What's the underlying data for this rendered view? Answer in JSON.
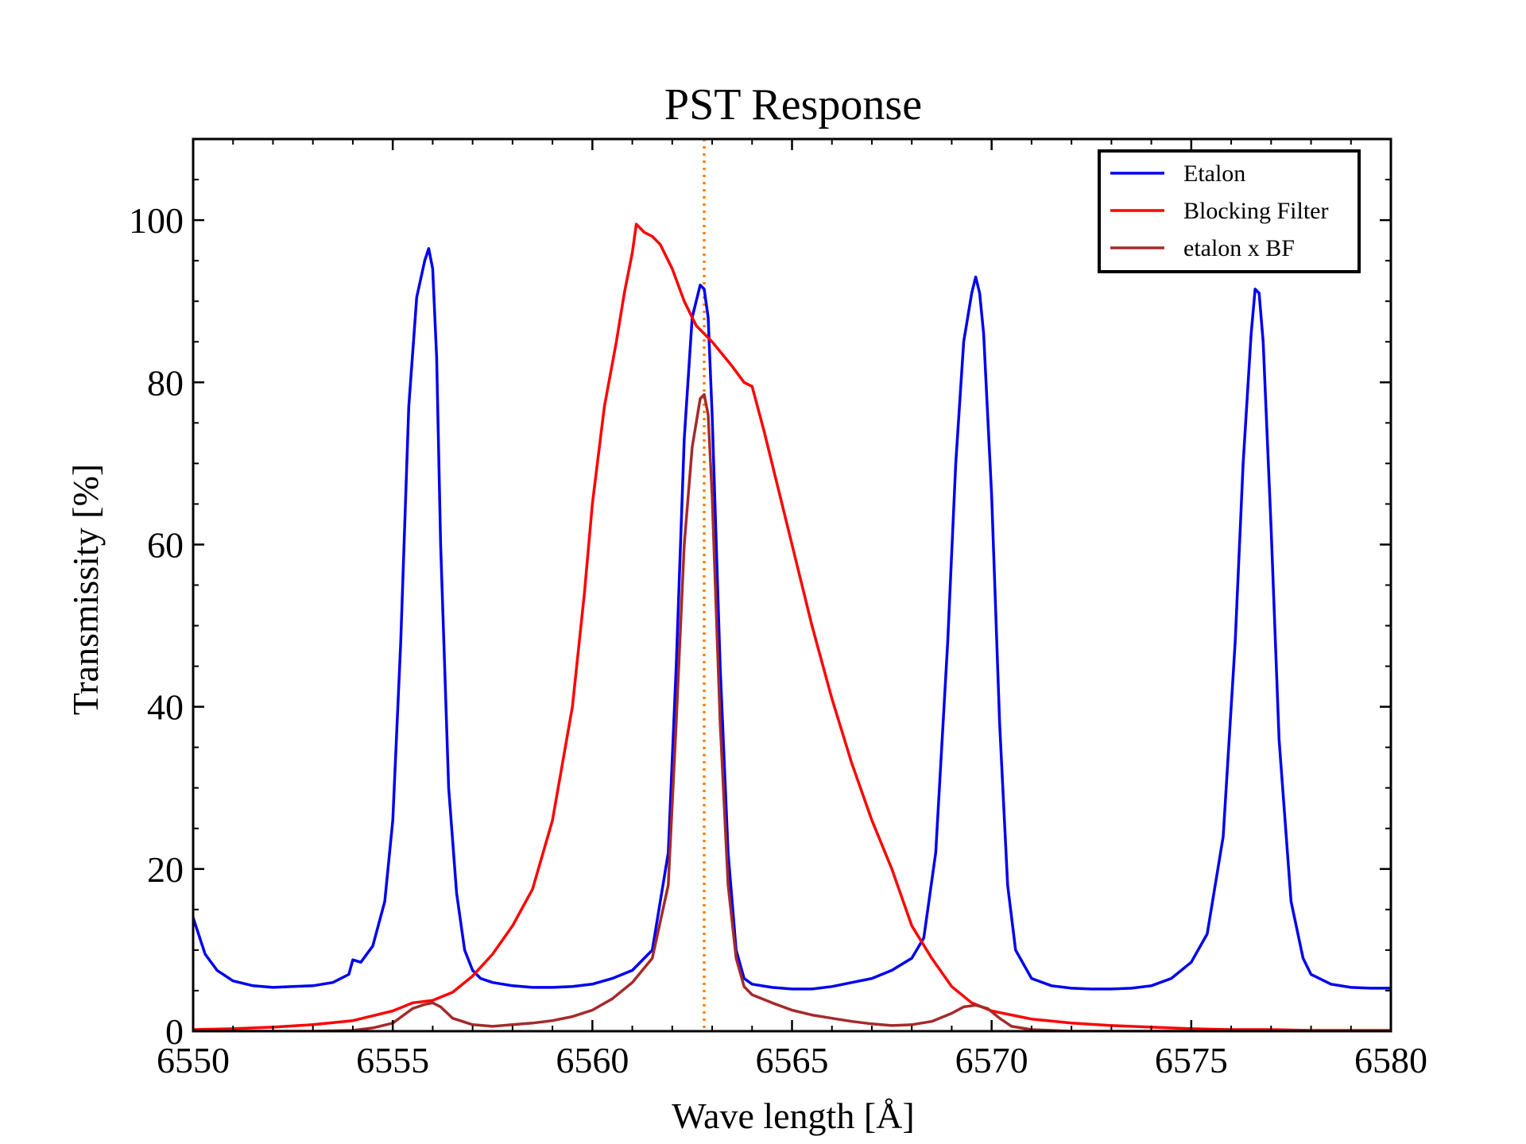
{
  "chart_data": {
    "type": "line",
    "title": "PST Response",
    "xlabel": "Wave length [Å]",
    "ylabel": "Transmissity [%]",
    "xlim": [
      6550,
      6580
    ],
    "ylim": [
      0,
      110
    ],
    "xticks": [
      6550,
      6555,
      6560,
      6565,
      6570,
      6575,
      6580
    ],
    "xtick_labels": [
      "6550",
      "6555",
      "6560",
      "6565",
      "6570",
      "6575",
      "6580"
    ],
    "yticks": [
      0,
      20,
      40,
      60,
      80,
      100
    ],
    "ytick_labels": [
      "0",
      "20",
      "40",
      "60",
      "80",
      "100"
    ],
    "grid": false,
    "legend_position": "top-right",
    "reference_line": {
      "x": 6562.8,
      "color": "#ff7f0e",
      "style": "dotted"
    },
    "series": [
      {
        "name": "Etalon",
        "color": "#0000ee",
        "x": [
          6550.0,
          6550.3,
          6550.6,
          6551.0,
          6551.5,
          6552.0,
          6552.5,
          6553.0,
          6553.5,
          6553.9,
          6554.0,
          6554.2,
          6554.5,
          6554.8,
          6555.0,
          6555.2,
          6555.4,
          6555.6,
          6555.8,
          6555.9,
          6556.0,
          6556.1,
          6556.2,
          6556.4,
          6556.6,
          6556.8,
          6557.0,
          6557.2,
          6557.5,
          6558.0,
          6558.5,
          6559.0,
          6559.5,
          6560.0,
          6560.5,
          6561.0,
          6561.5,
          6561.9,
          6562.1,
          6562.3,
          6562.5,
          6562.7,
          6562.8,
          6562.9,
          6563.0,
          6563.2,
          6563.4,
          6563.6,
          6563.8,
          6564.0,
          6564.5,
          6565.0,
          6565.5,
          6566.0,
          6566.5,
          6567.0,
          6567.5,
          6568.0,
          6568.3,
          6568.6,
          6568.9,
          6569.1,
          6569.3,
          6569.5,
          6569.6,
          6569.7,
          6569.8,
          6570.0,
          6570.2,
          6570.4,
          6570.6,
          6571.0,
          6571.5,
          6572.0,
          6572.5,
          6573.0,
          6573.5,
          6574.0,
          6574.5,
          6575.0,
          6575.4,
          6575.8,
          6576.1,
          6576.3,
          6576.5,
          6576.6,
          6576.7,
          6576.8,
          6577.0,
          6577.2,
          6577.5,
          6577.8,
          6578.0,
          6578.5,
          6579.0,
          6579.5,
          6580.0
        ],
        "y": [
          14.0,
          9.5,
          7.5,
          6.2,
          5.6,
          5.4,
          5.5,
          5.6,
          6.0,
          7.0,
          8.8,
          8.5,
          10.5,
          16.0,
          26.0,
          48.0,
          77.0,
          90.5,
          95.0,
          96.5,
          94.0,
          83.0,
          60.0,
          30.0,
          17.0,
          10.0,
          7.5,
          6.5,
          6.0,
          5.6,
          5.4,
          5.4,
          5.5,
          5.8,
          6.5,
          7.5,
          10.0,
          22.0,
          45.0,
          73.0,
          88.0,
          92.0,
          91.5,
          88.0,
          76.0,
          45.0,
          22.0,
          10.0,
          6.5,
          5.8,
          5.4,
          5.2,
          5.2,
          5.5,
          6.0,
          6.5,
          7.5,
          9.0,
          11.5,
          22.0,
          48.0,
          70.0,
          85.0,
          91.0,
          93.0,
          91.0,
          86.0,
          66.0,
          38.0,
          18.0,
          10.0,
          6.5,
          5.6,
          5.3,
          5.2,
          5.2,
          5.3,
          5.6,
          6.5,
          8.5,
          12.0,
          24.0,
          48.0,
          70.0,
          86.0,
          91.5,
          91.0,
          85.0,
          62.0,
          36.0,
          16.0,
          9.0,
          7.0,
          5.8,
          5.4,
          5.3,
          5.3
        ]
      },
      {
        "name": "Blocking Filter",
        "color": "#ff0000",
        "x": [
          6550.0,
          6551.0,
          6552.0,
          6553.0,
          6554.0,
          6555.0,
          6555.5,
          6556.0,
          6556.5,
          6557.0,
          6557.5,
          6558.0,
          6558.5,
          6559.0,
          6559.5,
          6559.8,
          6560.0,
          6560.3,
          6560.6,
          6560.8,
          6561.0,
          6561.1,
          6561.3,
          6561.5,
          6561.7,
          6562.0,
          6562.3,
          6562.6,
          6563.0,
          6563.5,
          6563.8,
          6564.0,
          6564.3,
          6564.6,
          6565.0,
          6565.5,
          6566.0,
          6566.5,
          6567.0,
          6567.5,
          6568.0,
          6568.5,
          6569.0,
          6569.5,
          6570.0,
          6571.0,
          6572.0,
          6573.0,
          6574.0,
          6575.0,
          6576.0,
          6577.0,
          6578.0,
          6579.0,
          6580.0
        ],
        "y": [
          0.2,
          0.3,
          0.5,
          0.8,
          1.3,
          2.5,
          3.5,
          3.8,
          4.8,
          6.8,
          9.5,
          13.0,
          17.5,
          26.0,
          40.0,
          54.0,
          65.0,
          77.0,
          85.0,
          91.0,
          96.0,
          99.5,
          98.5,
          98.0,
          97.0,
          94.0,
          90.0,
          87.0,
          85.0,
          82.0,
          80.0,
          79.5,
          74.0,
          68.0,
          60.0,
          50.0,
          41.0,
          33.0,
          26.0,
          20.0,
          13.0,
          9.0,
          5.5,
          3.5,
          2.5,
          1.5,
          1.0,
          0.7,
          0.5,
          0.3,
          0.2,
          0.2,
          0.1,
          0.1,
          0.1
        ]
      },
      {
        "name": "etalon x BF",
        "color": "#a52a2a",
        "x": [
          6550.0,
          6552.0,
          6553.0,
          6554.0,
          6554.5,
          6555.0,
          6555.5,
          6555.8,
          6556.0,
          6556.2,
          6556.5,
          6557.0,
          6557.5,
          6558.0,
          6558.5,
          6559.0,
          6559.5,
          6560.0,
          6560.5,
          6561.0,
          6561.5,
          6561.9,
          6562.1,
          6562.3,
          6562.5,
          6562.7,
          6562.8,
          6562.9,
          6563.0,
          6563.2,
          6563.4,
          6563.6,
          6563.8,
          6564.0,
          6564.5,
          6565.0,
          6565.5,
          6566.0,
          6566.5,
          6567.0,
          6567.5,
          6568.0,
          6568.5,
          6569.0,
          6569.3,
          6569.6,
          6569.9,
          6570.2,
          6570.5,
          6571.0,
          6572.0,
          6574.0,
          6576.0,
          6578.0,
          6580.0
        ],
        "y": [
          0.0,
          0.0,
          0.0,
          0.1,
          0.4,
          1.0,
          2.8,
          3.3,
          3.5,
          3.0,
          1.6,
          0.8,
          0.6,
          0.8,
          1.0,
          1.3,
          1.8,
          2.6,
          4.0,
          6.0,
          9.0,
          18.0,
          38.0,
          60.0,
          72.0,
          78.0,
          78.5,
          76.0,
          66.0,
          38.0,
          18.0,
          9.0,
          5.5,
          4.5,
          3.5,
          2.6,
          2.0,
          1.6,
          1.2,
          0.9,
          0.7,
          0.8,
          1.2,
          2.2,
          3.0,
          3.2,
          2.8,
          1.6,
          0.6,
          0.2,
          0.0,
          0.0,
          0.0,
          0.0,
          0.0
        ]
      }
    ]
  }
}
